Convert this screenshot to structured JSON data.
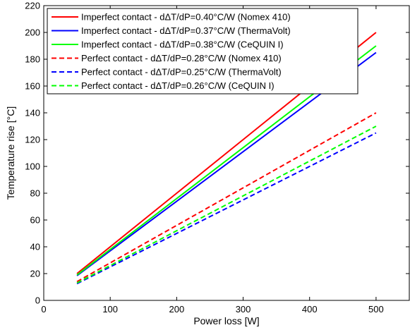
{
  "chart_data": {
    "type": "line",
    "xlabel": "Power loss  [W]",
    "ylabel": "Temperature rise  [°C]",
    "xlim": [
      0,
      550
    ],
    "ylim": [
      0,
      220
    ],
    "xticks": [
      0,
      100,
      200,
      300,
      400,
      500
    ],
    "yticks": [
      0,
      20,
      40,
      60,
      80,
      100,
      120,
      140,
      160,
      180,
      200,
      220
    ],
    "grid": false,
    "legend_position": "top-left",
    "series": [
      {
        "name": "Imperfect contact  - dΔT/dP=0.40°C/W (Nomex 410)",
        "color": "#ff0000",
        "dash": "solid",
        "x": [
          50,
          500
        ],
        "y": [
          20,
          200
        ]
      },
      {
        "name": "Imperfect contact  - dΔT/dP=0.37°C/W (ThermaVolt)",
        "color": "#0000ff",
        "dash": "solid",
        "x": [
          50,
          500
        ],
        "y": [
          18.5,
          185
        ]
      },
      {
        "name": "Imperfect contact  - dΔT/dP=0.38°C/W (CeQUIN I)",
        "color": "#00ff00",
        "dash": "solid",
        "x": [
          50,
          500
        ],
        "y": [
          19,
          190
        ]
      },
      {
        "name": "Perfect contact  - dΔT/dP=0.28°C/W (Nomex 410)",
        "color": "#ff0000",
        "dash": "dashed",
        "x": [
          50,
          500
        ],
        "y": [
          14,
          140
        ]
      },
      {
        "name": "Perfect contact  - dΔT/dP=0.25°C/W (ThermaVolt)",
        "color": "#0000ff",
        "dash": "dashed",
        "x": [
          50,
          500
        ],
        "y": [
          12.5,
          125
        ]
      },
      {
        "name": "Perfect contact  - dΔT/dP=0.26°C/W (CeQUIN I)",
        "color": "#00ff00",
        "dash": "dashed",
        "x": [
          50,
          500
        ],
        "y": [
          13,
          130
        ]
      }
    ]
  }
}
